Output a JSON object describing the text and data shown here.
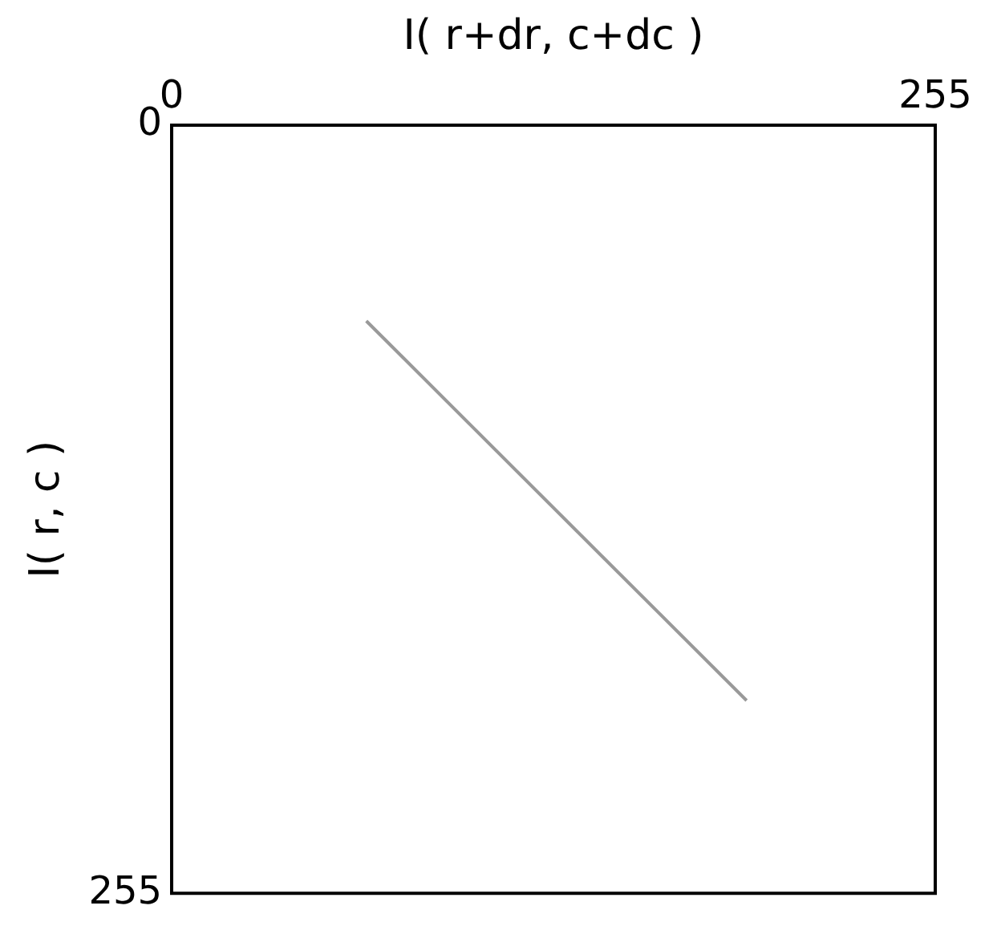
{
  "chart_data": {
    "type": "line",
    "xlabel": "I( r+dr, c+dc )",
    "ylabel": "I( r, c )",
    "x": [
      65,
      192
    ],
    "series": [
      {
        "color": "#999999",
        "values": [
          65,
          191
        ]
      }
    ],
    "xlim": [
      0,
      255
    ],
    "ylim": [
      255,
      0
    ],
    "xticks": [
      0,
      255
    ],
    "yticks": [
      0,
      255
    ],
    "legend": false,
    "marker": "none",
    "line_style": "solid"
  }
}
